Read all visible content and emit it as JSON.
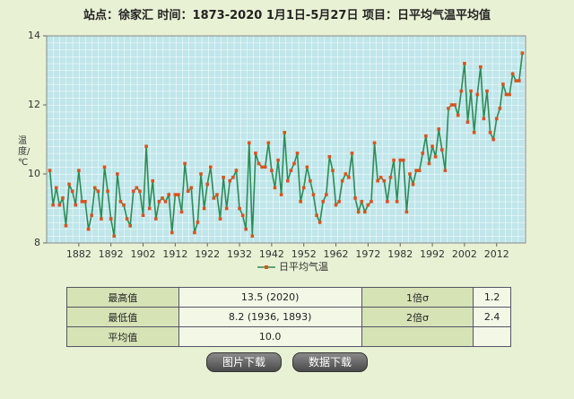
{
  "chart_data": {
    "type": "line",
    "title": "站点：徐家汇  时间：1873-2020    1月1日-5月27日  项目：日平均气温平均值",
    "y_label": "温度/℃",
    "x": [
      1873,
      1874,
      1875,
      1876,
      1877,
      1878,
      1879,
      1880,
      1881,
      1882,
      1883,
      1884,
      1885,
      1886,
      1887,
      1888,
      1889,
      1890,
      1891,
      1892,
      1893,
      1894,
      1895,
      1896,
      1897,
      1898,
      1899,
      1900,
      1901,
      1902,
      1903,
      1904,
      1905,
      1906,
      1907,
      1908,
      1909,
      1910,
      1911,
      1912,
      1913,
      1914,
      1915,
      1916,
      1917,
      1918,
      1919,
      1920,
      1921,
      1922,
      1923,
      1924,
      1925,
      1926,
      1927,
      1928,
      1929,
      1930,
      1931,
      1932,
      1933,
      1934,
      1935,
      1936,
      1937,
      1938,
      1939,
      1940,
      1941,
      1942,
      1943,
      1944,
      1945,
      1946,
      1947,
      1948,
      1949,
      1950,
      1951,
      1952,
      1953,
      1954,
      1955,
      1956,
      1957,
      1958,
      1959,
      1960,
      1961,
      1962,
      1963,
      1964,
      1965,
      1966,
      1967,
      1968,
      1969,
      1970,
      1971,
      1972,
      1973,
      1974,
      1975,
      1976,
      1977,
      1978,
      1979,
      1980,
      1981,
      1982,
      1983,
      1984,
      1985,
      1986,
      1987,
      1988,
      1989,
      1990,
      1991,
      1992,
      1993,
      1994,
      1995,
      1996,
      1997,
      1998,
      1999,
      2000,
      2001,
      2002,
      2003,
      2004,
      2005,
      2006,
      2007,
      2008,
      2009,
      2010,
      2011,
      2012,
      2013,
      2014,
      2015,
      2016,
      2017,
      2018,
      2019,
      2020
    ],
    "series": [
      {
        "name": "日平均气温",
        "color": "#2e8b57",
        "marker_color": "#d9541e",
        "values": [
          10.1,
          9.1,
          9.6,
          9.1,
          9.3,
          8.5,
          9.7,
          9.5,
          9.1,
          10.1,
          9.2,
          9.2,
          8.4,
          8.8,
          9.6,
          9.5,
          8.7,
          10.2,
          9.5,
          8.7,
          8.2,
          10.0,
          9.2,
          9.1,
          8.7,
          8.5,
          9.5,
          9.6,
          9.5,
          8.8,
          10.8,
          9.0,
          9.8,
          8.7,
          9.2,
          9.3,
          9.2,
          9.4,
          8.3,
          9.4,
          9.4,
          8.9,
          10.3,
          9.5,
          9.6,
          8.3,
          8.6,
          10.0,
          9.0,
          9.7,
          10.2,
          9.3,
          9.4,
          8.7,
          9.9,
          9.0,
          9.8,
          9.9,
          10.1,
          9.0,
          8.8,
          8.4,
          10.9,
          8.2,
          10.6,
          10.3,
          10.2,
          10.2,
          10.9,
          10.1,
          9.6,
          10.4,
          9.4,
          11.2,
          9.8,
          10.1,
          10.3,
          10.6,
          9.2,
          9.6,
          10.2,
          9.8,
          9.4,
          8.8,
          8.6,
          9.2,
          9.4,
          10.5,
          10.1,
          9.1,
          9.2,
          9.8,
          10.0,
          9.9,
          10.6,
          9.3,
          8.9,
          9.2,
          8.9,
          9.1,
          9.2,
          10.9,
          9.8,
          9.9,
          9.8,
          9.2,
          9.9,
          10.4,
          9.2,
          10.4,
          10.4,
          8.9,
          10.0,
          9.7,
          10.1,
          10.1,
          10.6,
          11.1,
          10.3,
          10.8,
          10.5,
          11.3,
          10.7,
          10.1,
          11.9,
          12.0,
          12.0,
          11.7,
          12.4,
          13.2,
          11.5,
          12.4,
          11.2,
          12.3,
          13.1,
          11.6,
          12.4,
          11.2,
          11.0,
          11.6,
          11.9,
          12.6,
          12.3,
          12.3,
          12.9,
          12.7,
          12.7,
          13.5
        ]
      }
    ],
    "xlim": [
      1872,
      2021
    ],
    "xticks": [
      1882,
      1892,
      1902,
      1912,
      1922,
      1932,
      1942,
      1952,
      1962,
      1972,
      1982,
      1992,
      2002,
      2012
    ],
    "ylim": [
      8,
      14
    ],
    "yticks": [
      8,
      10,
      12,
      14
    ],
    "legend": "bottom"
  },
  "stats": {
    "rows": [
      [
        "最高值",
        "13.5 (2020)",
        "1倍σ",
        "1.2"
      ],
      [
        "最低值",
        "8.2 (1936, 1893)",
        "2倍σ",
        "2.4"
      ],
      [
        "平均值",
        "10.0"
      ]
    ]
  },
  "buttons": [
    "图片下载",
    "数据下载"
  ]
}
